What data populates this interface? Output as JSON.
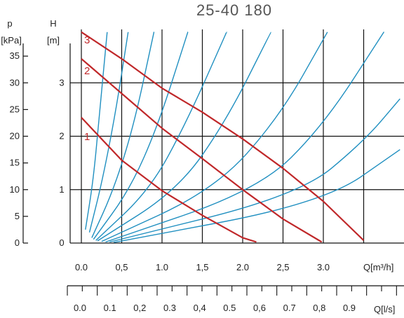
{
  "chart_data": {
    "type": "line",
    "title": "25-40 180",
    "left_axis_symbol": "p",
    "left_axis_unit": "[kPa]",
    "left_ticks": [
      0,
      5,
      10,
      15,
      20,
      25,
      30,
      35
    ],
    "left_tick_labels": [
      "0",
      "5",
      "10",
      "15",
      "20",
      "25",
      "30",
      "35"
    ],
    "head_axis_symbol": "H",
    "head_axis_unit": "[m]",
    "head_ticks": [
      0,
      1,
      2,
      3
    ],
    "head_tick_labels": [
      "0",
      "1",
      "2",
      "3"
    ],
    "ylim": [
      0,
      3.95
    ],
    "x_axis_label": "Q[m³/h]",
    "x_ticks": [
      0,
      0.5,
      1,
      1.5,
      2,
      2.5,
      3,
      3.5
    ],
    "x_tick_labels": [
      "0.0",
      "0,5",
      "1.0",
      "1,5",
      "2.0",
      "2,5",
      "3.0",
      ""
    ],
    "xlim": [
      0,
      3.95
    ],
    "grid": true,
    "second_x_axis_label": "Q[l/s]",
    "second_x_ticks": [
      0,
      0.1,
      0.2,
      0.3,
      0.4,
      0.5,
      0.6,
      0.7,
      0.8,
      0.9
    ],
    "second_x_tick_labels": [
      "0.0",
      "0.1",
      "0,2",
      "0.3",
      "0,4",
      "0.5",
      "0,6",
      "0.7",
      "0,8",
      "0.9"
    ],
    "pump_color": "#c0282a",
    "system_color": "#1f8fc0",
    "series": [
      {
        "name": "1",
        "points": [
          [
            0,
            2.35
          ],
          [
            0.5,
            1.55
          ],
          [
            1.0,
            0.98
          ],
          [
            1.5,
            0.52
          ],
          [
            2.0,
            0.1
          ],
          [
            2.17,
            0.02
          ]
        ]
      },
      {
        "name": "2",
        "points": [
          [
            0,
            3.45
          ],
          [
            0.5,
            2.8
          ],
          [
            1.0,
            2.15
          ],
          [
            1.5,
            1.58
          ],
          [
            2.0,
            1.0
          ],
          [
            2.5,
            0.45
          ],
          [
            2.98,
            0.02
          ]
        ]
      },
      {
        "name": "3",
        "points": [
          [
            0,
            3.95
          ],
          [
            0.5,
            3.45
          ],
          [
            1.0,
            2.9
          ],
          [
            1.5,
            2.45
          ],
          [
            2.0,
            1.95
          ],
          [
            2.5,
            1.4
          ],
          [
            3.0,
            0.78
          ],
          [
            3.5,
            0.05
          ]
        ]
      }
    ],
    "system_curves": [
      {
        "points": [
          [
            0.05,
            0.25
          ],
          [
            0.15,
            1.2
          ],
          [
            0.23,
            2.5
          ],
          [
            0.32,
            3.95
          ]
        ]
      },
      {
        "points": [
          [
            0.1,
            0.2
          ],
          [
            0.25,
            1.1
          ],
          [
            0.42,
            2.4
          ],
          [
            0.58,
            3.95
          ]
        ]
      },
      {
        "points": [
          [
            0.13,
            0.1
          ],
          [
            0.4,
            1.0
          ],
          [
            0.65,
            2.2
          ],
          [
            0.9,
            3.95
          ]
        ]
      },
      {
        "points": [
          [
            0.15,
            0.07
          ],
          [
            0.6,
            1.0
          ],
          [
            0.95,
            2.2
          ],
          [
            1.32,
            3.95
          ]
        ]
      },
      {
        "points": [
          [
            0.18,
            0.05
          ],
          [
            0.85,
            1.0
          ],
          [
            1.3,
            2.25
          ],
          [
            1.8,
            3.95
          ]
        ]
      },
      {
        "points": [
          [
            0.2,
            0.04
          ],
          [
            1.2,
            1.0
          ],
          [
            1.8,
            2.3
          ],
          [
            2.35,
            3.95
          ]
        ]
      },
      {
        "points": [
          [
            0.25,
            0.03
          ],
          [
            1.65,
            1.0
          ],
          [
            2.45,
            2.35
          ],
          [
            3.05,
            3.95
          ]
        ]
      },
      {
        "points": [
          [
            0.3,
            0.02
          ],
          [
            2.2,
            1.0
          ],
          [
            3.0,
            2.2
          ],
          [
            3.75,
            3.95
          ]
        ]
      },
      {
        "points": [
          [
            0.35,
            0.02
          ],
          [
            2.7,
            0.9
          ],
          [
            3.5,
            1.9
          ],
          [
            3.95,
            2.7
          ]
        ]
      },
      {
        "points": [
          [
            0.4,
            0.01
          ],
          [
            3.0,
            0.75
          ],
          [
            3.95,
            1.75
          ]
        ]
      }
    ]
  }
}
